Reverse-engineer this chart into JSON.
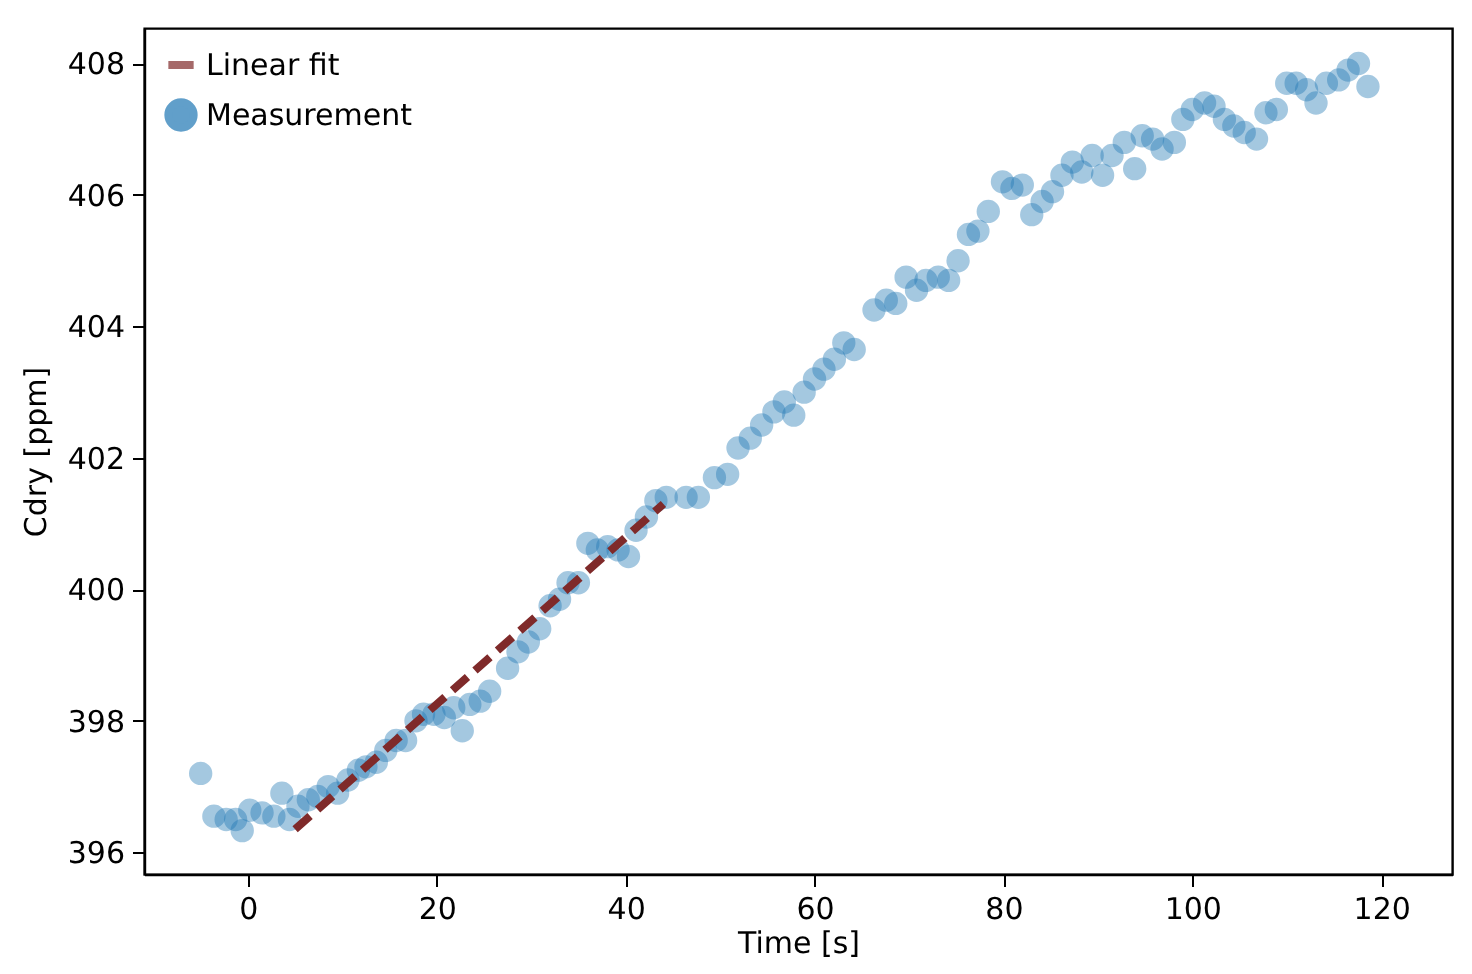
{
  "chart_data": {
    "type": "scatter",
    "xlabel": "Time [s]",
    "ylabel": "Cdry [ppm]",
    "xlim": [
      -11,
      127.5
    ],
    "ylim": [
      395.67,
      408.54
    ],
    "xticks": [
      0,
      20,
      40,
      60,
      80,
      100,
      120
    ],
    "yticks": [
      396,
      398,
      400,
      402,
      404,
      406,
      408
    ],
    "grid": false,
    "legend": "top left",
    "series": [
      {
        "name": "Linear fit",
        "type": "line",
        "color": "#7f2a2a",
        "line_style": "dashed",
        "marker": "none",
        "x": [
          5,
          44
        ],
        "values": [
          396.35,
          401.3
        ]
      },
      {
        "name": "Measurement",
        "type": "scatter",
        "color": "#1f77b4",
        "marker": "circle",
        "x": [
          -5,
          -3.6,
          -2.3,
          -1.3,
          -0.6,
          0.2,
          1.5,
          2.75,
          3.6,
          4.4,
          5.3,
          6.4,
          7.4,
          8.5,
          9.5,
          10.6,
          11.7,
          12.5,
          13.6,
          14.6,
          15.7,
          16.7,
          17.8,
          18.6,
          19.7,
          20.8,
          21.8,
          22.7,
          23.5,
          24.6,
          25.6,
          27.5,
          28.6,
          29.7,
          30.9,
          32,
          33,
          33.9,
          35,
          36,
          37,
          38.1,
          39.2,
          40.3,
          41.1,
          42.2,
          43.2,
          44.3,
          46.4,
          47.7,
          49.4,
          50.8,
          51.9,
          53.2,
          54.4,
          55.7,
          56.8,
          57.8,
          58.9,
          60,
          61,
          62.1,
          63.1,
          64.2,
          66.3,
          67.6,
          68.6,
          69.7,
          70.8,
          71.8,
          73.1,
          74.2,
          75.2,
          76.3,
          77.3,
          78.4,
          79.9,
          80.9,
          82,
          83,
          84.1,
          85.2,
          86.2,
          87.3,
          88.3,
          89.4,
          90.5,
          91.5,
          92.8,
          93.9,
          94.7,
          95.8,
          96.8,
          98.1,
          99,
          100,
          101.3,
          102.3,
          103.4,
          104.4,
          105.5,
          106.8,
          107.8,
          108.9,
          110,
          111,
          112.1,
          113.1,
          114.2,
          115.5,
          116.5,
          117.6,
          118.6
        ],
        "values": [
          397.2,
          396.55,
          396.5,
          396.5,
          396.33,
          396.64,
          396.6,
          396.55,
          396.9,
          396.5,
          396.7,
          396.8,
          396.85,
          397,
          396.9,
          397.1,
          397.25,
          397.3,
          397.37,
          397.55,
          397.7,
          397.7,
          398,
          398.1,
          398.1,
          398.05,
          398.2,
          397.85,
          398.25,
          398.3,
          398.45,
          398.8,
          399.05,
          399.2,
          399.4,
          399.75,
          399.85,
          400.1,
          400.1,
          400.7,
          400.6,
          400.65,
          400.6,
          400.5,
          400.9,
          401.1,
          401.35,
          401.4,
          401.4,
          401.4,
          401.7,
          401.75,
          402.15,
          402.3,
          402.5,
          402.7,
          402.85,
          402.65,
          403,
          403.2,
          403.35,
          403.5,
          403.75,
          403.65,
          404.25,
          404.4,
          404.35,
          404.75,
          404.55,
          404.7,
          404.75,
          404.7,
          405,
          405.4,
          405.45,
          405.75,
          406.2,
          406.1,
          406.15,
          405.7,
          405.9,
          406.05,
          406.3,
          406.5,
          406.35,
          406.6,
          406.3,
          406.6,
          406.8,
          406.4,
          406.9,
          406.85,
          406.7,
          406.8,
          407.15,
          407.3,
          407.4,
          407.35,
          407.15,
          407.05,
          406.95,
          406.85,
          407.25,
          407.3,
          407.7,
          407.7,
          407.6,
          407.4,
          407.7,
          407.75,
          407.9,
          408,
          407.65
        ]
      }
    ]
  }
}
